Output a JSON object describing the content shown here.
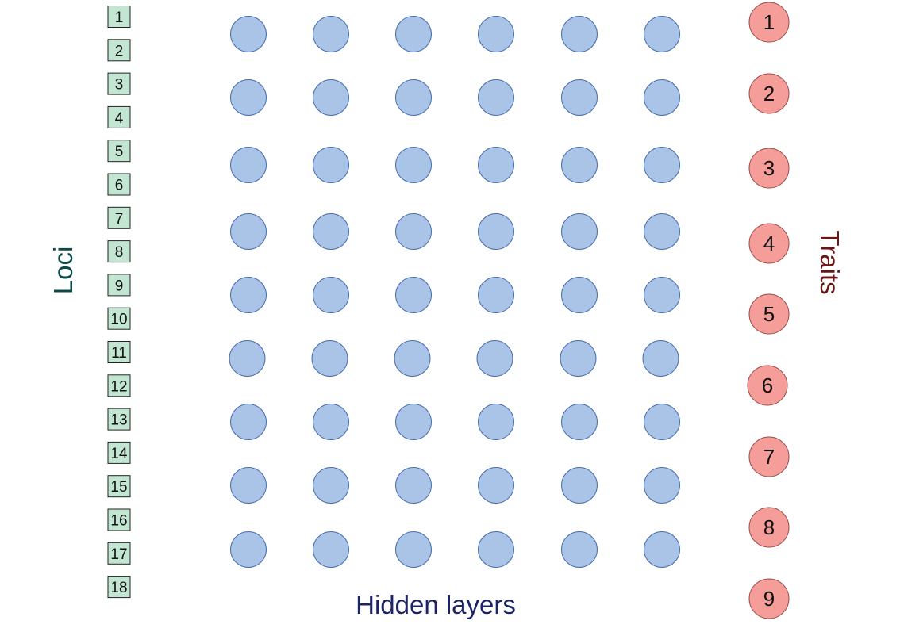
{
  "labels": {
    "loci": "Loci",
    "traits": "Traits",
    "hidden_layers": "Hidden layers"
  },
  "loci": [
    "1",
    "2",
    "3",
    "4",
    "5",
    "6",
    "7",
    "8",
    "9",
    "10",
    "11",
    "12",
    "13",
    "14",
    "15",
    "16",
    "17",
    "18"
  ],
  "traits": [
    "1",
    "2",
    "3",
    "4",
    "5",
    "6",
    "7",
    "8",
    "9"
  ],
  "hidden_layers": {
    "layer_count": 6,
    "nodes_per_layer": 9
  },
  "colors": {
    "locus_fill": "#c3e6d2",
    "hidden_fill": "#aac4e8",
    "trait_fill": "#f59d98",
    "loci_text": "#0c4a4a",
    "traits_text": "#6b1414",
    "hidden_text": "#1c2466"
  }
}
